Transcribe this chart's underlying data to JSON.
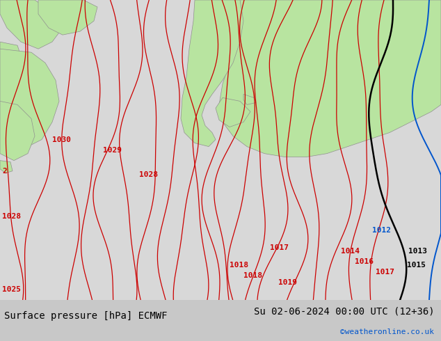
{
  "title_left": "Surface pressure [hPa] ECMWF",
  "title_right": "Su 02-06-2024 00:00 UTC (12+36)",
  "credit": "©weatheronline.co.uk",
  "bg_color": "#c8c8c8",
  "land_green": "#b8e4a0",
  "sea_color": "#d8d8d8",
  "contour_red": "#cc0000",
  "contour_black": "#000000",
  "contour_blue": "#0055cc",
  "border_color": "#909090",
  "bottom_bar": "#ffffff",
  "figsize": [
    6.34,
    4.9
  ],
  "dpi": 100,
  "title_fontsize": 10,
  "credit_fontsize": 8,
  "label_fontsize": 8
}
